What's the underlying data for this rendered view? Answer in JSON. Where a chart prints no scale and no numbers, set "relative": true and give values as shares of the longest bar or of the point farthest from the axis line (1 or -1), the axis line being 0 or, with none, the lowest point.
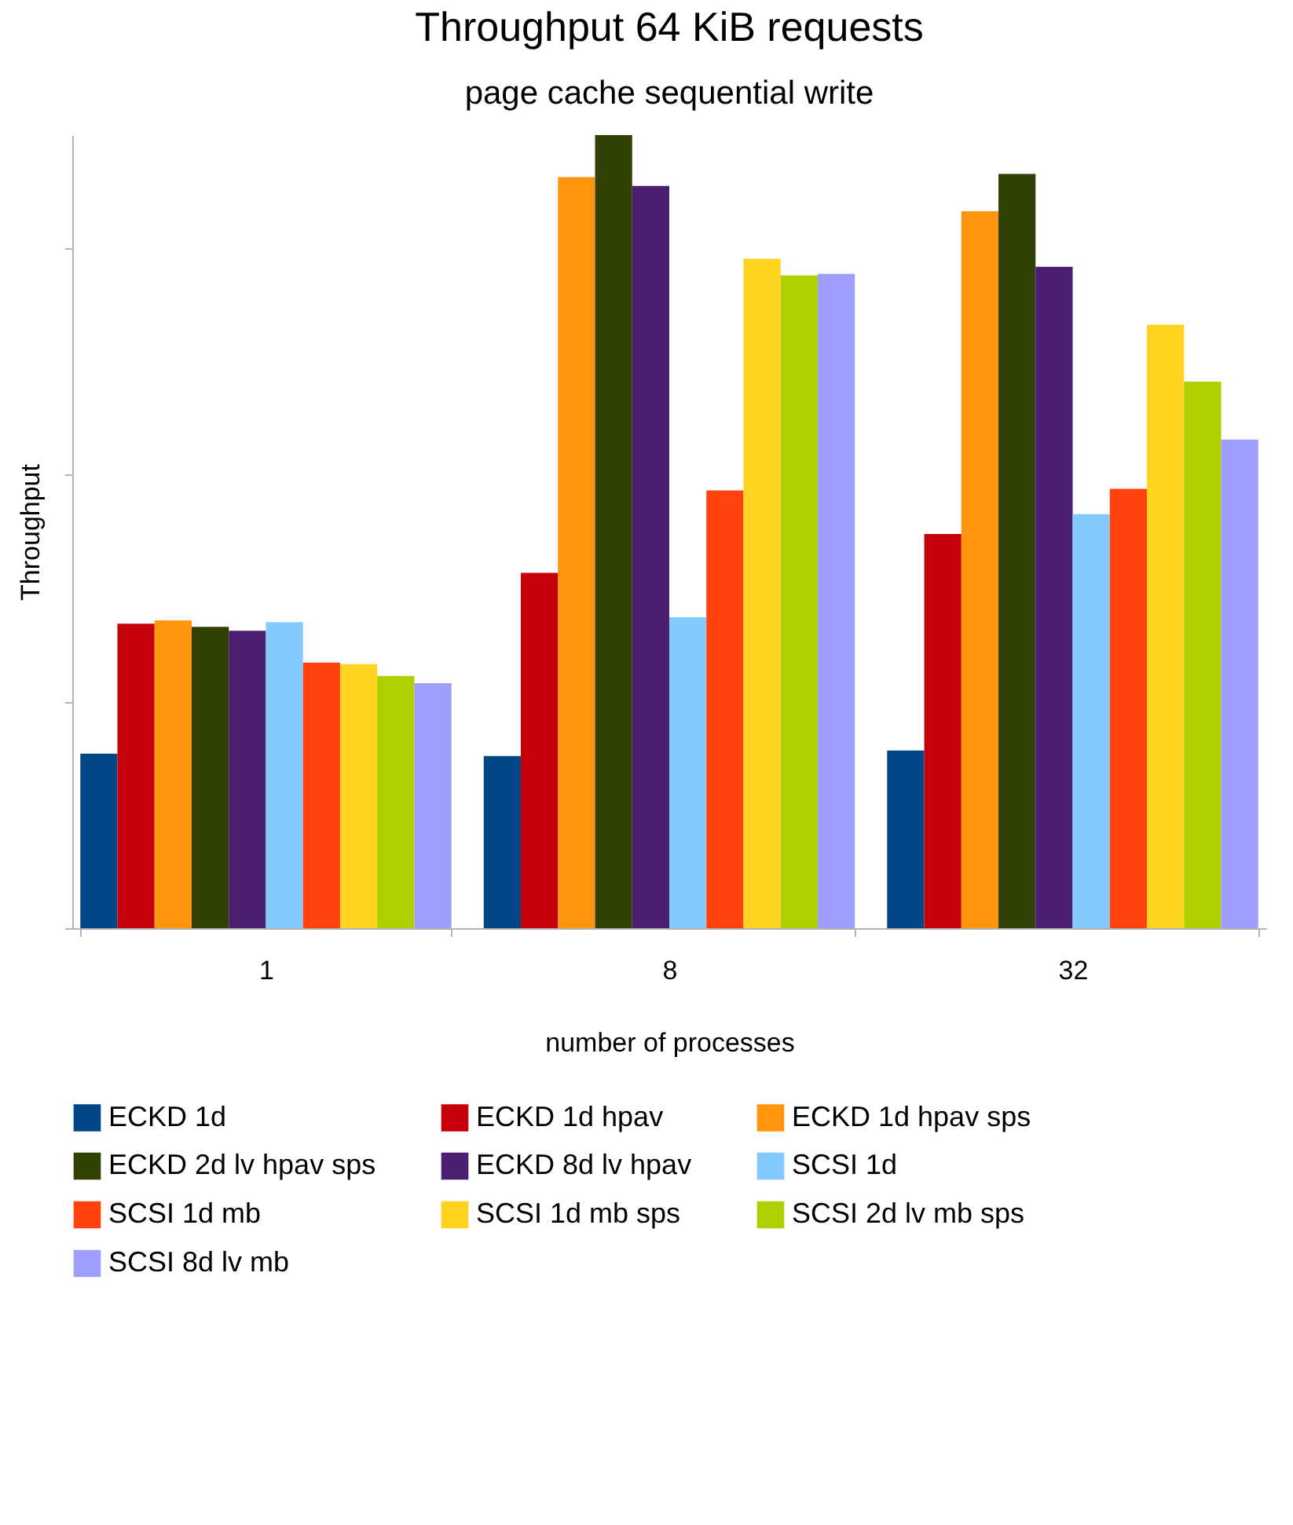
{
  "chart_data": {
    "type": "bar",
    "title": "Throughput 64 KiB requests",
    "subtitle": "page cache sequential write",
    "xlabel": "number of processes",
    "ylabel": "Throughput",
    "relative": true,
    "legend": "bottom",
    "categories": [
      "1",
      "8",
      "32"
    ],
    "series": [
      {
        "name": "ECKD 1d",
        "color": "#004586",
        "values": [
          0.22,
          0.217,
          0.224
        ]
      },
      {
        "name": "ECKD 1d hpav",
        "color": "#c5000b",
        "values": [
          0.384,
          0.448,
          0.497
        ]
      },
      {
        "name": "ECKD 1d hpav sps",
        "color": "#ff950e",
        "values": [
          0.388,
          0.947,
          0.904
        ]
      },
      {
        "name": "ECKD 2d lv hpav sps",
        "color": "#314004",
        "values": [
          0.38,
          1,
          0.951
        ]
      },
      {
        "name": "ECKD 8d lv hpav",
        "color": "#4b1f6f",
        "values": [
          0.375,
          0.936,
          0.834
        ]
      },
      {
        "name": "SCSI 1d",
        "color": "#83caff",
        "values": [
          0.386,
          0.392,
          0.522
        ]
      },
      {
        "name": "SCSI 1d mb",
        "color": "#ff420e",
        "values": [
          0.335,
          0.552,
          0.554
        ]
      },
      {
        "name": "SCSI 1d mb sps",
        "color": "#ffd320",
        "values": [
          0.333,
          0.844,
          0.761
        ]
      },
      {
        "name": "SCSI 2d lv mb sps",
        "color": "#aecf00",
        "values": [
          0.318,
          0.823,
          0.689
        ]
      },
      {
        "name": "SCSI 8d lv mb",
        "color": "#9e9eff",
        "values": [
          0.309,
          0.825,
          0.616
        ]
      }
    ]
  }
}
